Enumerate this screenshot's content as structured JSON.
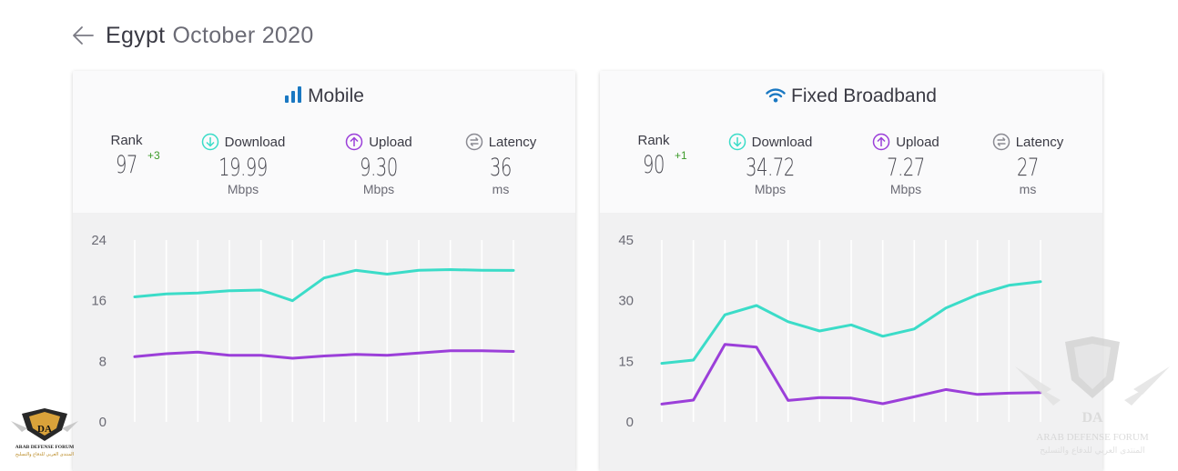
{
  "header": {
    "country": "Egypt",
    "date": "October 2020"
  },
  "colors": {
    "download": "#3bdcc8",
    "upload": "#9b3fd9",
    "latency": "#8a8a92",
    "brand": "#1a78c2"
  },
  "panels": [
    {
      "id": "mobile",
      "title": "Mobile",
      "icon": "signal-bars-icon",
      "rank": {
        "label": "Rank",
        "value": "97",
        "change": "+3"
      },
      "download": {
        "label": "Download",
        "value": "19.99",
        "unit": "Mbps"
      },
      "upload": {
        "label": "Upload",
        "value": "9.30",
        "unit": "Mbps"
      },
      "latency": {
        "label": "Latency",
        "value": "36",
        "unit": "ms"
      }
    },
    {
      "id": "fixed",
      "title": "Fixed Broadband",
      "icon": "wifi-icon",
      "rank": {
        "label": "Rank",
        "value": "90",
        "change": "+1"
      },
      "download": {
        "label": "Download",
        "value": "34.72",
        "unit": "Mbps"
      },
      "upload": {
        "label": "Upload",
        "value": "7.27",
        "unit": "Mbps"
      },
      "latency": {
        "label": "Latency",
        "value": "27",
        "unit": "ms"
      }
    }
  ],
  "watermark": {
    "brand": "DA",
    "name": "ARAB DEFENSE FORUM",
    "arabic": "المنتدى العربي للدفاع والتسليح"
  },
  "chart_data": [
    {
      "type": "line",
      "ylim": [
        0,
        24
      ],
      "yticks": [
        "0",
        "8",
        "16",
        "24"
      ],
      "series": [
        {
          "values": [
            16.5,
            16.9,
            17.0,
            17.3,
            17.4,
            16.0,
            19.0,
            20.0,
            19.5,
            20.0,
            20.1,
            20.0,
            19.99
          ]
        },
        {
          "values": [
            8.6,
            9.0,
            9.2,
            8.8,
            8.8,
            8.4,
            8.7,
            8.9,
            8.8,
            9.1,
            9.4,
            9.4,
            9.3
          ]
        }
      ]
    },
    {
      "type": "line",
      "ylim": [
        0,
        45
      ],
      "yticks": [
        "0",
        "15",
        "30",
        "45"
      ],
      "series": [
        {
          "values": [
            14.5,
            15.3,
            26.5,
            28.8,
            24.8,
            22.5,
            24.0,
            21.2,
            23.0,
            28.2,
            31.5,
            33.8,
            34.72
          ]
        },
        {
          "values": [
            4.4,
            5.4,
            19.2,
            18.5,
            5.3,
            6.0,
            5.9,
            4.5,
            6.2,
            8.0,
            6.8,
            7.1,
            7.27
          ]
        }
      ]
    }
  ]
}
